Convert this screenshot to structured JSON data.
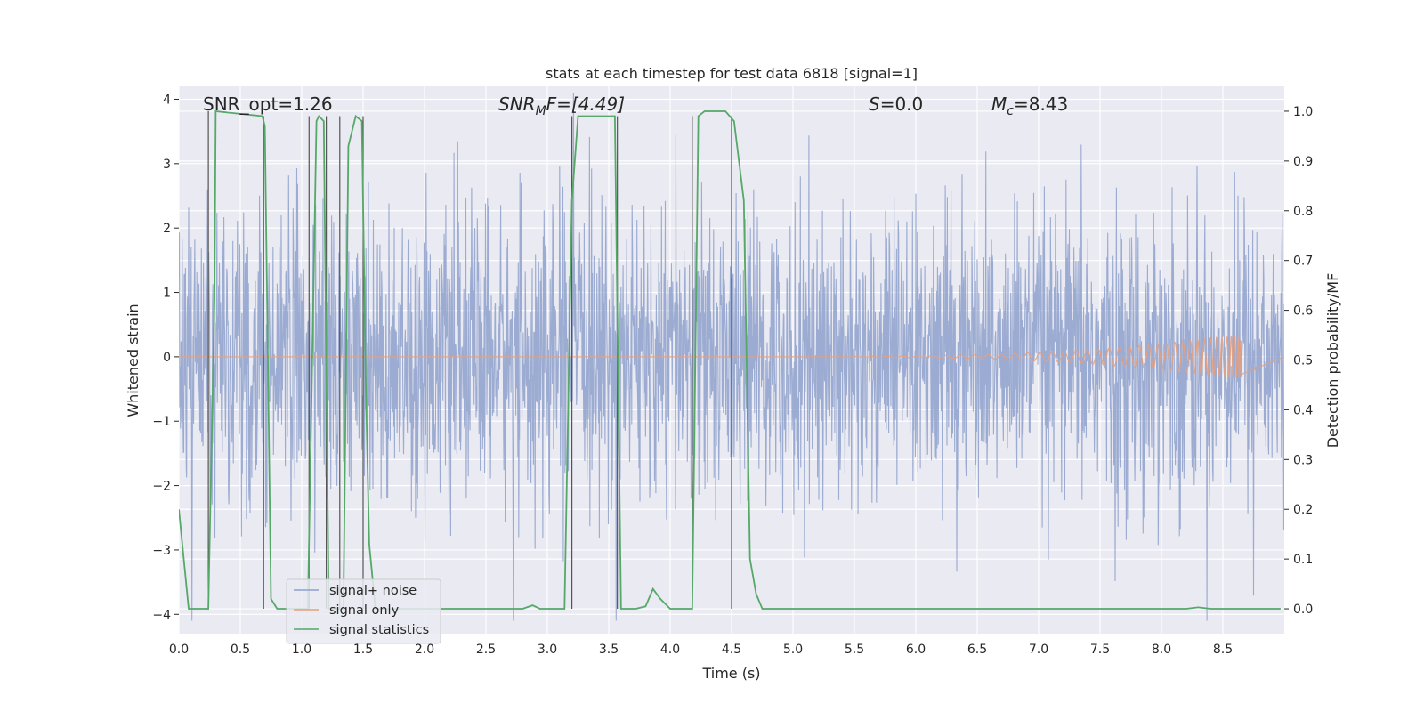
{
  "chart_data": {
    "type": "line",
    "title": "stats at each timestep for test data 6818 [signal=1]",
    "xlabel": "Time (s)",
    "ylabel": "Whitened strain",
    "ylabel_right": "Detection probability/MF",
    "xlim": [
      0.0,
      9.0
    ],
    "ylim": [
      -4.3,
      4.2
    ],
    "ylim_right": [
      -0.05,
      1.05
    ],
    "x_ticks": [
      "0.0",
      "0.5",
      "1.0",
      "1.5",
      "2.0",
      "2.5",
      "3.0",
      "3.5",
      "4.0",
      "4.5",
      "5.0",
      "5.5",
      "6.0",
      "6.5",
      "7.0",
      "7.5",
      "8.0",
      "8.5"
    ],
    "y_ticks": [
      "4",
      "3",
      "2",
      "1",
      "0",
      "−1",
      "−2",
      "−3",
      "−4"
    ],
    "y_ticks_right": [
      "1.0",
      "0.9",
      "0.8",
      "0.7",
      "0.6",
      "0.5",
      "0.4",
      "0.3",
      "0.2",
      "0.1",
      "0.0"
    ],
    "annotations": {
      "snr_opt": "SNR_opt=1.26",
      "snr_mf_label": "SNR",
      "snr_mf_sub": "M",
      "snr_mf_tail": "F=[4.49]",
      "s_label": "S",
      "s_value": "=0.0",
      "mc_label": "M",
      "mc_sub": "c",
      "mc_value": "=8.43"
    },
    "legend": {
      "noise": "signal+ noise",
      "signal": "signal only",
      "stats": "signal statistics"
    },
    "colors": {
      "noise": "#8da0cb",
      "signal": "#e5a07e",
      "stats": "#55a868",
      "vlines": "#555555",
      "background": "#eaeaf2",
      "grid": "#ffffff"
    },
    "noise_sample_rate": 300,
    "noise_envelope": 2.25,
    "noise_peak": 3.6,
    "signal_chirp": {
      "t_end": 8.65,
      "amplitude_end": 0.35,
      "onset": 4.5
    },
    "series": [
      {
        "name": "signal statistics",
        "axis": "right",
        "t": [
          0.0,
          0.08,
          0.24,
          0.29,
          0.3,
          0.68,
          0.7,
          0.75,
          0.8,
          1.05,
          1.12,
          1.14,
          1.18,
          1.22,
          1.27,
          1.29,
          1.34,
          1.38,
          1.44,
          1.49,
          1.52,
          1.55,
          1.6,
          2.8,
          2.88,
          2.94,
          3.14,
          3.2,
          3.25,
          3.3,
          3.55,
          3.6,
          3.65,
          3.72,
          3.8,
          3.86,
          3.92,
          4.0,
          4.18,
          4.23,
          4.28,
          4.3,
          4.45,
          4.52,
          4.6,
          4.65,
          4.7,
          4.75,
          4.95,
          8.2,
          8.3,
          8.4,
          8.97
        ],
        "values": [
          0.2,
          0.0,
          0.0,
          0.62,
          1.0,
          0.99,
          0.97,
          0.02,
          0.0,
          0.0,
          0.98,
          0.99,
          0.98,
          0.0,
          0.0,
          0.0,
          0.0,
          0.93,
          0.99,
          0.98,
          0.47,
          0.13,
          0.0,
          0.0,
          0.007,
          0.0,
          0.0,
          0.82,
          0.99,
          0.99,
          0.99,
          0.0,
          0.0,
          0.0,
          0.005,
          0.04,
          0.02,
          0.0,
          0.0,
          0.99,
          1.0,
          1.0,
          1.0,
          0.98,
          0.82,
          0.1,
          0.03,
          0.0,
          0.0,
          0.0,
          0.003,
          0.0,
          0.0
        ]
      },
      {
        "name": "detection markers",
        "axis": "right",
        "t": [
          0.24,
          0.69,
          1.06,
          1.2,
          1.31,
          1.5,
          3.2,
          3.57,
          4.18,
          4.5
        ],
        "values": [
          1.0,
          0.99,
          0.99,
          0.99,
          0.99,
          0.99,
          0.99,
          0.99,
          0.99,
          0.99
        ]
      }
    ]
  }
}
